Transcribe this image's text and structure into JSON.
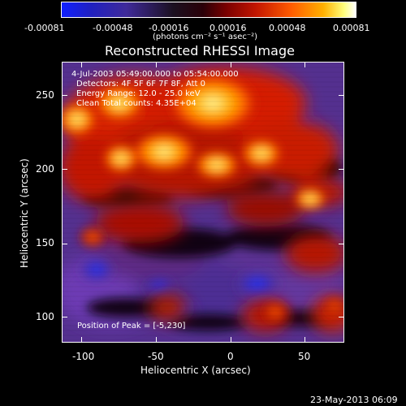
{
  "colorbar": {
    "ticks": [
      "-0.00081",
      "-0.00048",
      "-0.00016",
      "0.00016",
      "0.00048",
      "0.00081"
    ],
    "units": "(photons cm⁻² s⁻¹ asec⁻²)"
  },
  "title": "Reconstructed RHESSI Image",
  "annotations": {
    "time": "4-Jul-2003 05:49:00.000 to 05:54:00.000",
    "detectors": "Detectors: 4F 5F 6F 7F 8F, Att 0",
    "energy": "Energy Range: 12.0 - 25.0 keV",
    "clean": "Clean   Total counts: 4.35E+04",
    "peak": "Position of Peak = [-5,230]"
  },
  "axes": {
    "xlabel": "Heliocentric X (arcsec)",
    "ylabel": "Heliocentric Y (arcsec)",
    "xticks": [
      "-100",
      "-50",
      "0",
      "50"
    ],
    "yticks": [
      "250",
      "200",
      "150",
      "100"
    ]
  },
  "footer": {
    "date": "23-May-2013 06:09"
  },
  "colors": {
    "background": "#000000",
    "foreground": "#ffffff"
  }
}
